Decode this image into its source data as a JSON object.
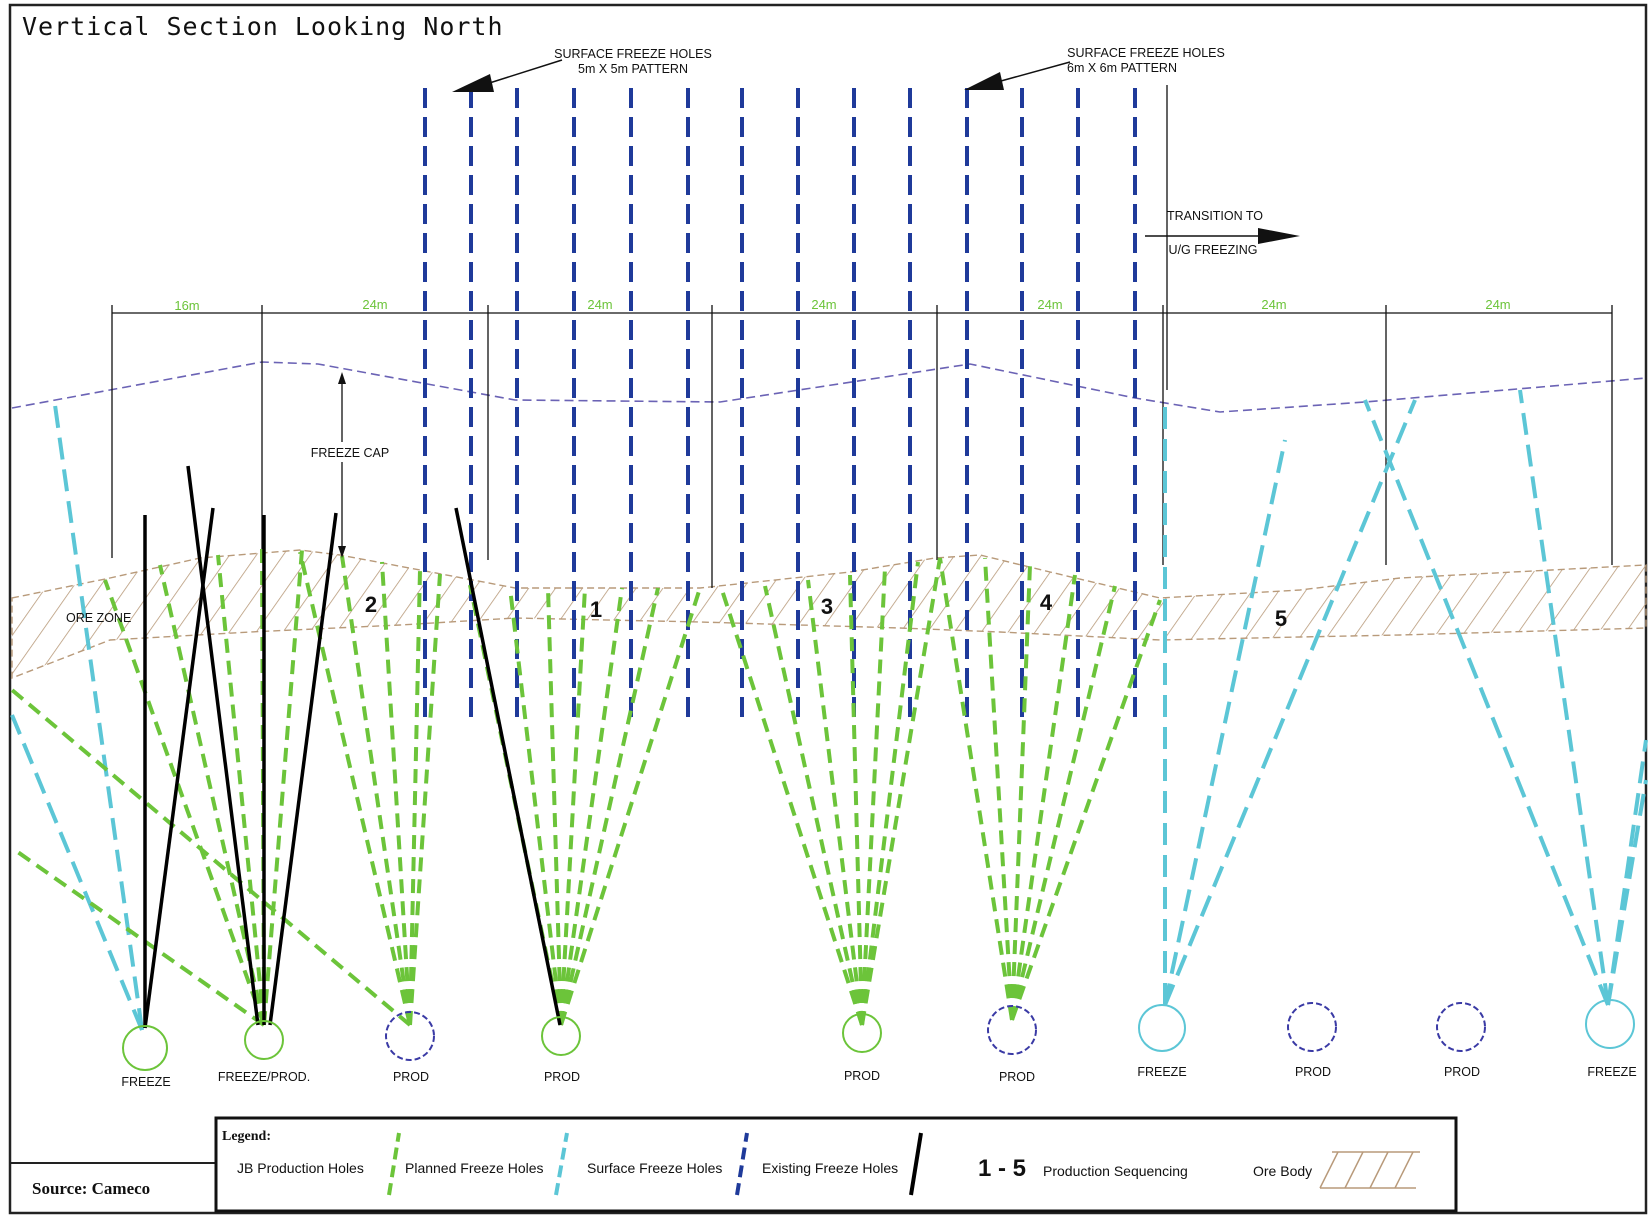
{
  "title": "Vertical Section Looking North",
  "source": "Source: Cameco",
  "callouts": {
    "surface_5x5_line1": "SURFACE FREEZE HOLES",
    "surface_5x5_line2": "5m X 5m PATTERN",
    "surface_6x6_line1": "SURFACE FREEZE HOLES",
    "surface_6x6_line2": "6m X 6m PATTERN",
    "transition_line1": "TRANSITION TO",
    "transition_line2": "U/G FREEZING",
    "freeze_cap": "FREEZE CAP",
    "ore_zone": "ORE ZONE"
  },
  "dimensions": [
    "16m",
    "24m",
    "24m",
    "24m",
    "24m",
    "24m",
    "24m"
  ],
  "sequence_numbers": [
    "2",
    "1",
    "3",
    "4",
    "5"
  ],
  "stations": [
    "FREEZE",
    "FREEZE/PROD.",
    "PROD",
    "PROD",
    "PROD",
    "PROD",
    "FREEZE",
    "PROD",
    "PROD",
    "FREEZE"
  ],
  "legend": {
    "heading": "Legend:",
    "jb_production": "JB Production Holes",
    "planned_freeze": "Planned Freeze Holes",
    "surface_freeze": "Surface Freeze Holes",
    "existing_freeze": "Existing Freeze Holes",
    "seq_symbol": "1 - 5",
    "seq_label": "Production Sequencing",
    "ore_body": "Ore Body"
  },
  "colors": {
    "jb_production": "#6cc43a",
    "planned_freeze": "#5cc6d6",
    "surface_freeze": "#1f3a9a",
    "existing_freeze": "#000000",
    "ore_body": "#b89a7a",
    "dimension_text": "#6cc43a"
  }
}
